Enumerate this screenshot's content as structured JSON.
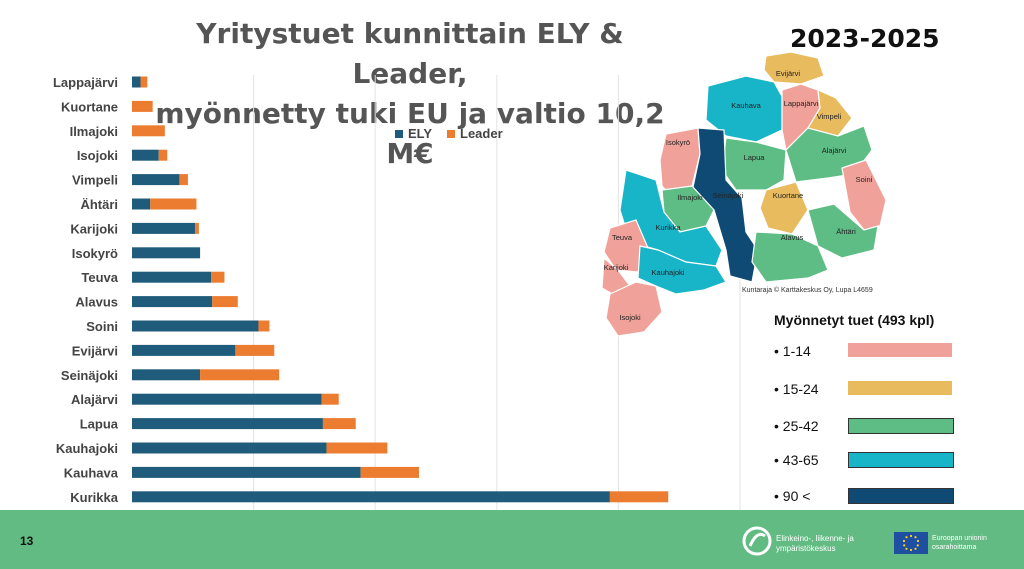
{
  "title_line1": "Yritystuet kunnittain ELY & Leader,",
  "title_line2": "myönnetty tuki EU ja valtio 10,2 M€",
  "period": "2023-2025",
  "chart_data": {
    "type": "bar",
    "orientation": "horizontal",
    "stacked": true,
    "categories": [
      "Lappajärvi",
      "Kuortane",
      "Ilmajoki",
      "Isojoki",
      "Vimpeli",
      "Ähtäri",
      "Karijoki",
      "Isokyrö",
      "Teuva",
      "Alavus",
      "Soini",
      "Evijärvi",
      "Seinäjoki",
      "Alajärvi",
      "Lapua",
      "Kauhajoki",
      "Kauhava",
      "Kurikka"
    ],
    "series": [
      {
        "name": "ELY",
        "color": "#1f5b7a",
        "values": [
          35000,
          0,
          0,
          110000,
          195000,
          75000,
          260000,
          280000,
          325000,
          330000,
          520000,
          425000,
          280000,
          780000,
          785000,
          800000,
          940000,
          1965000
        ]
      },
      {
        "name": "Leader",
        "color": "#ec7c30",
        "values": [
          28000,
          85000,
          135000,
          35000,
          35000,
          190000,
          15000,
          0,
          55000,
          105000,
          45000,
          160000,
          325000,
          70000,
          135000,
          250000,
          240000,
          240000
        ]
      }
    ],
    "xlim": [
      0,
      2500000
    ],
    "xticks": [
      "0",
      "500000",
      "1000000",
      "1500000",
      "2000000",
      "2500000"
    ],
    "grid": true,
    "legend_position": "top-center"
  },
  "map": {
    "credit": "Kuntaraja © Karttakeskus Oy, Lupa L4659",
    "regions": [
      {
        "name": "Evijärvi",
        "cls": 1
      },
      {
        "name": "Kauhava",
        "cls": 3
      },
      {
        "name": "Lappajärvi",
        "cls": 0
      },
      {
        "name": "Vimpeli",
        "cls": 1
      },
      {
        "name": "Isokyrö",
        "cls": 0
      },
      {
        "name": "Lapua",
        "cls": 2
      },
      {
        "name": "Alajärvi",
        "cls": 2
      },
      {
        "name": "Soini",
        "cls": 0
      },
      {
        "name": "Seinäjoki",
        "cls": 4
      },
      {
        "name": "Ilmajoki",
        "cls": 2
      },
      {
        "name": "Kuortane",
        "cls": 1
      },
      {
        "name": "Kurikka",
        "cls": 3
      },
      {
        "name": "Ähtäri",
        "cls": 2
      },
      {
        "name": "Alavus",
        "cls": 2
      },
      {
        "name": "Teuva",
        "cls": 0
      },
      {
        "name": "Karijoki",
        "cls": 0
      },
      {
        "name": "Kauhajoki",
        "cls": 3
      },
      {
        "name": "Isojoki",
        "cls": 0
      }
    ]
  },
  "legend": {
    "title": "Myönnetyt tuet (493 kpl)",
    "classes": [
      {
        "label": "1-14",
        "color": "#f0a29a"
      },
      {
        "label": "15-24",
        "color": "#e8bb5f"
      },
      {
        "label": "25-42",
        "color": "#5dbd84"
      },
      {
        "label": "43-65",
        "color": "#18b5c8"
      },
      {
        "label": "90 <",
        "color": "#0e4a73"
      }
    ]
  },
  "footer": {
    "page": "13",
    "agency": "Elinkeino-, liikenne- ja ympäristökeskus",
    "eu": "Euroopan unionin osarahoittama"
  }
}
